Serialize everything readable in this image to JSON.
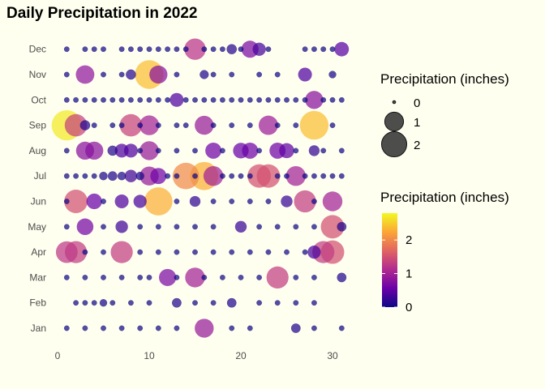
{
  "chart_data": {
    "type": "scatter",
    "title": "Daily Precipitation in 2022",
    "xlabel": "",
    "ylabel": "",
    "xlim": [
      0,
      31
    ],
    "x_ticks": [
      0,
      10,
      20,
      30
    ],
    "months": [
      "Jan",
      "Feb",
      "Mar",
      "Apr",
      "May",
      "Jun",
      "Jul",
      "Aug",
      "Sep",
      "Oct",
      "Nov",
      "Dec"
    ],
    "size_legend": {
      "title": "Precipitation (inches)",
      "breaks": [
        0,
        1,
        2
      ]
    },
    "color_legend": {
      "title": "Precipitation (inches)",
      "breaks": [
        0,
        1,
        2
      ],
      "colors": [
        "#0d0887",
        "#6a00a8",
        "#b12a90",
        "#e16462",
        "#fca636",
        "#f0f921"
      ]
    },
    "grid": false,
    "series": [
      {
        "month": "Jan",
        "points": [
          [
            1,
            0.01
          ],
          [
            3,
            0.01
          ],
          [
            5,
            0.01
          ],
          [
            7,
            0.01
          ],
          [
            9,
            0.01
          ],
          [
            11,
            0.01
          ],
          [
            13,
            0.01
          ],
          [
            16,
            0.9
          ],
          [
            19,
            0.01
          ],
          [
            21,
            0.01
          ],
          [
            26,
            0.12
          ],
          [
            28,
            0.01
          ],
          [
            31,
            0.01
          ]
        ]
      },
      {
        "month": "Feb",
        "points": [
          [
            2,
            0.01
          ],
          [
            3,
            0.01
          ],
          [
            4,
            0.01
          ],
          [
            5,
            0.05
          ],
          [
            6,
            0.01
          ],
          [
            8,
            0.01
          ],
          [
            10,
            0.01
          ],
          [
            13,
            0.12
          ],
          [
            15,
            0.01
          ],
          [
            17,
            0.01
          ],
          [
            19,
            0.12
          ],
          [
            22,
            0.01
          ],
          [
            24,
            0.01
          ],
          [
            26,
            0.01
          ],
          [
            28,
            0.01
          ]
        ]
      },
      {
        "month": "Mar",
        "points": [
          [
            1,
            0.01
          ],
          [
            3,
            0.01
          ],
          [
            5,
            0.01
          ],
          [
            7,
            0.01
          ],
          [
            9,
            0.01
          ],
          [
            10,
            0.01
          ],
          [
            12,
            0.7
          ],
          [
            13,
            0.01
          ],
          [
            15,
            1.0
          ],
          [
            16,
            0.01
          ],
          [
            18,
            0.01
          ],
          [
            20,
            0.01
          ],
          [
            22,
            0.01
          ],
          [
            24,
            1.3
          ],
          [
            26,
            0.01
          ],
          [
            28,
            0.01
          ],
          [
            31,
            0.12
          ]
        ]
      },
      {
        "month": "Apr",
        "points": [
          [
            1,
            1.25
          ],
          [
            2,
            1.3
          ],
          [
            3,
            0.01
          ],
          [
            5,
            0.01
          ],
          [
            7,
            1.3
          ],
          [
            9,
            0.01
          ],
          [
            11,
            0.01
          ],
          [
            13,
            0.01
          ],
          [
            15,
            0.01
          ],
          [
            17,
            0.01
          ],
          [
            19,
            0.01
          ],
          [
            21,
            0.01
          ],
          [
            23,
            0.01
          ],
          [
            25,
            0.01
          ],
          [
            27,
            0.01
          ],
          [
            28,
            0.35
          ],
          [
            29,
            1.3
          ],
          [
            30,
            1.5
          ]
        ]
      },
      {
        "month": "May",
        "points": [
          [
            1,
            0.01
          ],
          [
            3,
            0.65
          ],
          [
            5,
            0.01
          ],
          [
            7,
            0.3
          ],
          [
            9,
            0.01
          ],
          [
            11,
            0.01
          ],
          [
            13,
            0.01
          ],
          [
            15,
            0.01
          ],
          [
            17,
            0.01
          ],
          [
            20,
            0.25
          ],
          [
            22,
            0.01
          ],
          [
            24,
            0.01
          ],
          [
            26,
            0.01
          ],
          [
            28,
            0.01
          ],
          [
            30,
            1.5
          ],
          [
            31,
            0.12
          ]
        ]
      },
      {
        "month": "Jun",
        "points": [
          [
            1,
            0.01
          ],
          [
            2,
            1.5
          ],
          [
            4,
            0.55
          ],
          [
            5,
            0.01
          ],
          [
            7,
            0.4
          ],
          [
            9,
            0.35
          ],
          [
            11,
            2.3
          ],
          [
            13,
            0.01
          ],
          [
            15,
            0.2
          ],
          [
            17,
            0.01
          ],
          [
            19,
            0.01
          ],
          [
            21,
            0.01
          ],
          [
            23,
            0.01
          ],
          [
            25,
            0.25
          ],
          [
            27,
            1.3
          ],
          [
            28,
            0.01
          ],
          [
            30,
            1.0
          ]
        ]
      },
      {
        "month": "Jul",
        "points": [
          [
            1,
            0.01
          ],
          [
            2,
            0.01
          ],
          [
            3,
            0.01
          ],
          [
            4,
            0.01
          ],
          [
            5,
            0.08
          ],
          [
            6,
            0.12
          ],
          [
            7,
            0.08
          ],
          [
            8,
            0.3
          ],
          [
            9,
            0.08
          ],
          [
            10,
            0.9
          ],
          [
            11,
            0.6
          ],
          [
            12,
            0.01
          ],
          [
            13,
            0.01
          ],
          [
            14,
            2.0
          ],
          [
            15,
            0.01
          ],
          [
            16,
            2.3
          ],
          [
            17,
            1.0
          ],
          [
            18,
            0.01
          ],
          [
            19,
            0.01
          ],
          [
            20,
            0.01
          ],
          [
            21,
            0.01
          ],
          [
            22,
            1.5
          ],
          [
            23,
            1.5
          ],
          [
            24,
            0.01
          ],
          [
            25,
            0.01
          ],
          [
            26,
            1.0
          ],
          [
            27,
            0.01
          ],
          [
            28,
            0.01
          ],
          [
            29,
            0.01
          ],
          [
            30,
            0.01
          ],
          [
            31,
            0.01
          ]
        ]
      },
      {
        "month": "Aug",
        "points": [
          [
            1,
            0.01
          ],
          [
            3,
            0.8
          ],
          [
            4,
            0.8
          ],
          [
            6,
            0.15
          ],
          [
            7,
            0.4
          ],
          [
            8,
            0.4
          ],
          [
            9,
            0.01
          ],
          [
            10,
            0.9
          ],
          [
            11,
            0.01
          ],
          [
            13,
            0.01
          ],
          [
            15,
            0.01
          ],
          [
            17,
            0.6
          ],
          [
            18,
            0.01
          ],
          [
            20,
            0.55
          ],
          [
            21,
            0.6
          ],
          [
            22,
            0.01
          ],
          [
            24,
            0.6
          ],
          [
            25,
            0.5
          ],
          [
            26,
            0.01
          ],
          [
            28,
            0.2
          ],
          [
            29,
            0.01
          ],
          [
            31,
            0.01
          ]
        ]
      },
      {
        "month": "Sep",
        "points": [
          [
            1,
            2.7
          ],
          [
            2,
            1.35
          ],
          [
            3,
            0.15
          ],
          [
            4,
            0.01
          ],
          [
            6,
            0.01
          ],
          [
            7,
            0.01
          ],
          [
            8,
            1.35
          ],
          [
            9,
            0.01
          ],
          [
            10,
            1.0
          ],
          [
            11,
            0.01
          ],
          [
            13,
            0.01
          ],
          [
            14,
            0.01
          ],
          [
            16,
            0.9
          ],
          [
            17,
            0.01
          ],
          [
            19,
            0.01
          ],
          [
            21,
            0.01
          ],
          [
            23,
            0.95
          ],
          [
            24,
            0.01
          ],
          [
            26,
            0.01
          ],
          [
            28,
            2.4
          ],
          [
            30,
            0.01
          ]
        ]
      },
      {
        "month": "Oct",
        "points": [
          [
            1,
            0.01
          ],
          [
            2,
            0.01
          ],
          [
            3,
            0.01
          ],
          [
            4,
            0.01
          ],
          [
            5,
            0.01
          ],
          [
            6,
            0.01
          ],
          [
            7,
            0.01
          ],
          [
            8,
            0.01
          ],
          [
            9,
            0.01
          ],
          [
            10,
            0.01
          ],
          [
            11,
            0.01
          ],
          [
            12,
            0.01
          ],
          [
            13,
            0.4
          ],
          [
            14,
            0.01
          ],
          [
            15,
            0.01
          ],
          [
            16,
            0.01
          ],
          [
            17,
            0.01
          ],
          [
            18,
            0.01
          ],
          [
            19,
            0.01
          ],
          [
            20,
            0.01
          ],
          [
            21,
            0.01
          ],
          [
            22,
            0.01
          ],
          [
            23,
            0.01
          ],
          [
            24,
            0.01
          ],
          [
            25,
            0.01
          ],
          [
            26,
            0.01
          ],
          [
            27,
            0.01
          ],
          [
            28,
            0.8
          ],
          [
            29,
            0.01
          ],
          [
            30,
            0.01
          ],
          [
            31,
            0.01
          ]
        ]
      },
      {
        "month": "Nov",
        "points": [
          [
            1,
            0.01
          ],
          [
            3,
            0.85
          ],
          [
            5,
            0.01
          ],
          [
            7,
            0.01
          ],
          [
            8,
            0.15
          ],
          [
            10,
            2.4
          ],
          [
            11,
            0.8
          ],
          [
            13,
            0.01
          ],
          [
            16,
            0.1
          ],
          [
            17,
            0.01
          ],
          [
            19,
            0.01
          ],
          [
            22,
            0.01
          ],
          [
            24,
            0.01
          ],
          [
            27,
            0.4
          ],
          [
            30,
            0.05
          ]
        ]
      },
      {
        "month": "Dec",
        "points": [
          [
            1,
            0.01
          ],
          [
            3,
            0.01
          ],
          [
            4,
            0.01
          ],
          [
            5,
            0.01
          ],
          [
            7,
            0.01
          ],
          [
            8,
            0.01
          ],
          [
            9,
            0.01
          ],
          [
            10,
            0.01
          ],
          [
            11,
            0.01
          ],
          [
            12,
            0.01
          ],
          [
            13,
            0.01
          ],
          [
            14,
            0.01
          ],
          [
            15,
            1.2
          ],
          [
            16,
            0.01
          ],
          [
            17,
            0.01
          ],
          [
            18,
            0.01
          ],
          [
            19,
            0.15
          ],
          [
            20,
            0.01
          ],
          [
            21,
            0.7
          ],
          [
            22,
            0.35
          ],
          [
            23,
            0.01
          ],
          [
            27,
            0.01
          ],
          [
            28,
            0.01
          ],
          [
            29,
            0.01
          ],
          [
            30,
            0.01
          ],
          [
            31,
            0.45
          ]
        ]
      }
    ]
  }
}
